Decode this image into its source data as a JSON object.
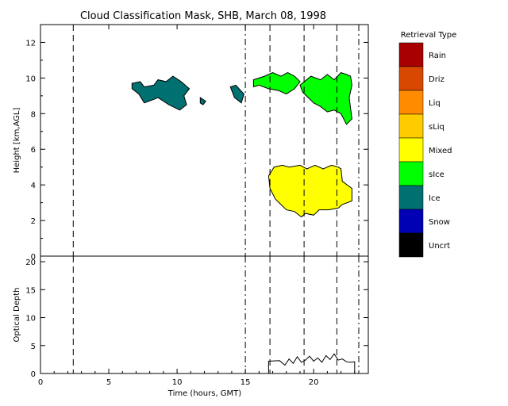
{
  "chart_data": [
    {
      "type": "heatmap",
      "title": "Cloud Classification Mask, SHB, March 08, 1998",
      "xlabel": "",
      "ylabel": "Height [km,AGL]",
      "xlim": [
        0,
        24
      ],
      "ylim": [
        0,
        13
      ],
      "yticks": [
        "0",
        "2",
        "4",
        "6",
        "8",
        "10",
        "12"
      ],
      "markers_dashed": [
        2.4,
        16.8,
        19.3,
        21.7
      ],
      "markers_dashdot": [
        15.0,
        23.3
      ],
      "legend": {
        "title": "Retrieval Type",
        "placement": "right",
        "entries": [
          {
            "label": "Rain",
            "color": "#a80000"
          },
          {
            "label": "Driz",
            "color": "#d84800"
          },
          {
            "label": "Liq",
            "color": "#ff8c00"
          },
          {
            "label": "sLiq",
            "color": "#ffcc00"
          },
          {
            "label": "Mixed",
            "color": "#ffff00"
          },
          {
            "label": "sIce",
            "color": "#00ff00"
          },
          {
            "label": "Ice",
            "color": "#007070"
          },
          {
            "label": "Snow",
            "color": "#0000b4"
          },
          {
            "label": "Uncrt",
            "color": "#000000"
          }
        ]
      },
      "regions": [
        {
          "class": "Ice",
          "color": "#007070",
          "x": [
            6.7,
            7.3,
            7.6,
            8.3,
            8.6,
            9.2,
            9.7,
            10.3,
            10.9,
            10.5,
            10.7,
            10.2,
            9.4,
            8.6,
            8.3,
            7.6,
            7.2,
            6.7
          ],
          "y": [
            9.7,
            9.8,
            9.5,
            9.6,
            9.9,
            9.8,
            10.1,
            9.8,
            9.4,
            9.0,
            8.5,
            8.2,
            8.5,
            8.9,
            8.8,
            8.6,
            9.1,
            9.4
          ]
        },
        {
          "class": "Ice",
          "color": "#007070",
          "x": [
            13.9,
            14.3,
            14.9,
            14.7,
            14.2
          ],
          "y": [
            9.5,
            9.6,
            9.1,
            8.6,
            8.9
          ]
        },
        {
          "class": "Ice",
          "color": "#007070",
          "x": [
            11.7,
            12.1,
            11.9,
            11.7
          ],
          "y": [
            8.9,
            8.7,
            8.5,
            8.6
          ]
        },
        {
          "class": "sIce",
          "color": "#00ff00",
          "x": [
            15.6,
            16.4,
            17.0,
            17.6,
            18.1,
            18.6,
            19.0,
            18.6,
            18.0,
            17.4,
            16.7,
            16.0,
            15.6
          ],
          "y": [
            9.9,
            10.1,
            10.3,
            10.1,
            10.3,
            10.1,
            9.8,
            9.4,
            9.1,
            9.3,
            9.4,
            9.6,
            9.5
          ]
        },
        {
          "class": "sIce",
          "color": "#00ff00",
          "x": [
            19.0,
            19.8,
            20.5,
            21.0,
            21.5,
            22.0,
            22.4,
            22.7,
            22.8,
            22.6,
            22.8,
            22.4,
            22.0,
            21.5,
            21.0,
            20.5,
            20.0,
            19.6,
            19.2
          ],
          "y": [
            9.6,
            10.1,
            9.9,
            10.2,
            9.9,
            10.3,
            10.2,
            10.1,
            9.6,
            8.9,
            7.7,
            7.4,
            8.0,
            8.2,
            8.1,
            8.4,
            8.6,
            8.9,
            9.2
          ]
        },
        {
          "class": "Mixed",
          "color": "#ffff00",
          "x": [
            16.7,
            17.1,
            17.7,
            18.2,
            19.0,
            19.5,
            20.1,
            20.7,
            21.3,
            21.8,
            22.0,
            22.1,
            22.8,
            22.8,
            22.1,
            21.8,
            21.1,
            20.4,
            20.0,
            19.4,
            19.1,
            18.6,
            18.0,
            17.6,
            17.2,
            16.8
          ],
          "y": [
            4.5,
            5.0,
            5.1,
            5.0,
            5.1,
            4.9,
            5.1,
            4.9,
            5.1,
            5.0,
            4.9,
            4.2,
            3.8,
            3.1,
            2.9,
            2.7,
            2.6,
            2.6,
            2.3,
            2.4,
            2.2,
            2.5,
            2.6,
            2.9,
            3.2,
            3.8
          ]
        }
      ]
    },
    {
      "type": "line",
      "xlabel": "Time (hours, GMT)",
      "ylabel": "Optical Depth",
      "xlim": [
        0,
        24
      ],
      "ylim": [
        0,
        21
      ],
      "xticks": [
        "0",
        "5",
        "10",
        "15",
        "20"
      ],
      "yticks": [
        "0",
        "5",
        "10",
        "15",
        "20"
      ],
      "series": [
        {
          "color": "#000000",
          "x": [
            0,
            16.7,
            16.7,
            17.5,
            17.9,
            18.2,
            18.5,
            18.8,
            19.1,
            19.4,
            19.7,
            20.0,
            20.3,
            20.6,
            20.9,
            21.2,
            21.5,
            21.8,
            22.1,
            22.4,
            22.7,
            23.0,
            23.0
          ],
          "y": [
            0,
            0,
            2.2,
            2.3,
            1.5,
            2.6,
            1.8,
            3.0,
            2.0,
            2.4,
            3.1,
            2.2,
            2.8,
            2.0,
            3.2,
            2.5,
            3.5,
            2.4,
            2.6,
            2.1,
            2.0,
            2.1,
            0
          ]
        }
      ]
    }
  ]
}
